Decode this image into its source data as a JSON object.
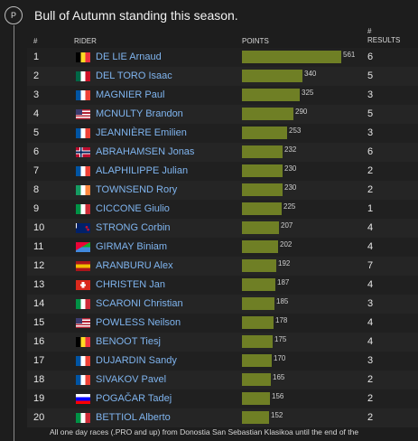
{
  "section_badge": "P",
  "heading": "Bull of Autumn standing this season.",
  "columns": {
    "num": "#",
    "rider": "RIDER",
    "points": "POINTS",
    "results_line1": "#",
    "results_line2": "RESULTS"
  },
  "max_points": 561,
  "riders": [
    {
      "rank": "1",
      "name": "DE LIE Arnaud",
      "points": 561,
      "points_label": "561",
      "results": "6",
      "flag": "be",
      "flag_colors": [
        "#000000",
        "#fdda24",
        "#ef3340"
      ]
    },
    {
      "rank": "2",
      "name": "DEL TORO Isaac",
      "points": 340,
      "points_label": "340",
      "results": "5",
      "flag": "mx",
      "flag_colors": [
        "#006847",
        "#ffffff",
        "#ce1126"
      ]
    },
    {
      "rank": "3",
      "name": "MAGNIER Paul",
      "points": 325,
      "points_label": "325",
      "results": "3",
      "flag": "fr",
      "flag_colors": [
        "#0055a4",
        "#ffffff",
        "#ef4135"
      ]
    },
    {
      "rank": "4",
      "name": "MCNULTY Brandon",
      "points": 290,
      "points_label": "290",
      "results": "5",
      "flag": "us",
      "flag_colors": [
        "#b22234",
        "#ffffff",
        "#3c3b6e"
      ]
    },
    {
      "rank": "5",
      "name": "JEANNIÈRE Emilien",
      "points": 253,
      "points_label": "253",
      "results": "3",
      "flag": "fr",
      "flag_colors": [
        "#0055a4",
        "#ffffff",
        "#ef4135"
      ]
    },
    {
      "rank": "6",
      "name": "ABRAHAMSEN Jonas",
      "points": 232,
      "points_label": "232",
      "results": "6",
      "flag": "no",
      "flag_colors": [
        "#ba0c2f",
        "#ffffff",
        "#00205b"
      ]
    },
    {
      "rank": "7",
      "name": "ALAPHILIPPE Julian",
      "points": 230,
      "points_label": "230",
      "results": "2",
      "flag": "fr",
      "flag_colors": [
        "#0055a4",
        "#ffffff",
        "#ef4135"
      ]
    },
    {
      "rank": "8",
      "name": "TOWNSEND Rory",
      "points": 230,
      "points_label": "230",
      "results": "2",
      "flag": "ie",
      "flag_colors": [
        "#169b62",
        "#ffffff",
        "#ff883e"
      ]
    },
    {
      "rank": "9",
      "name": "CICCONE Giulio",
      "points": 225,
      "points_label": "225",
      "results": "1",
      "flag": "it",
      "flag_colors": [
        "#009246",
        "#ffffff",
        "#ce2b37"
      ]
    },
    {
      "rank": "10",
      "name": "STRONG Corbin",
      "points": 207,
      "points_label": "207",
      "results": "4",
      "flag": "nz",
      "flag_colors": [
        "#012169",
        "#c8102e",
        "#ffffff"
      ]
    },
    {
      "rank": "11",
      "name": "GIRMAY Biniam",
      "points": 202,
      "points_label": "202",
      "results": "4",
      "flag": "er",
      "flag_colors": [
        "#12ad2b",
        "#4189dd",
        "#ea0437"
      ]
    },
    {
      "rank": "12",
      "name": "ARANBURU Alex",
      "points": 192,
      "points_label": "192",
      "results": "7",
      "flag": "es",
      "flag_colors": [
        "#aa151b",
        "#f1bf00",
        "#aa151b"
      ]
    },
    {
      "rank": "13",
      "name": "CHRISTEN Jan",
      "points": 187,
      "points_label": "187",
      "results": "4",
      "flag": "ch",
      "flag_colors": [
        "#da291c",
        "#ffffff",
        "#da291c"
      ]
    },
    {
      "rank": "14",
      "name": "SCARONI Christian",
      "points": 185,
      "points_label": "185",
      "results": "3",
      "flag": "it",
      "flag_colors": [
        "#009246",
        "#ffffff",
        "#ce2b37"
      ]
    },
    {
      "rank": "15",
      "name": "POWLESS Neilson",
      "points": 178,
      "points_label": "178",
      "results": "4",
      "flag": "us",
      "flag_colors": [
        "#b22234",
        "#ffffff",
        "#3c3b6e"
      ]
    },
    {
      "rank": "16",
      "name": "BENOOT Tiesj",
      "points": 175,
      "points_label": "175",
      "results": "4",
      "flag": "be",
      "flag_colors": [
        "#000000",
        "#fdda24",
        "#ef3340"
      ]
    },
    {
      "rank": "17",
      "name": "DUJARDIN Sandy",
      "points": 170,
      "points_label": "170",
      "results": "3",
      "flag": "fr",
      "flag_colors": [
        "#0055a4",
        "#ffffff",
        "#ef4135"
      ]
    },
    {
      "rank": "18",
      "name": "SIVAKOV Pavel",
      "points": 165,
      "points_label": "165",
      "results": "2",
      "flag": "fr",
      "flag_colors": [
        "#0055a4",
        "#ffffff",
        "#ef4135"
      ]
    },
    {
      "rank": "19",
      "name": "POGAČAR Tadej",
      "points": 156,
      "points_label": "156",
      "results": "2",
      "flag": "si",
      "flag_colors": [
        "#ffffff",
        "#0000ff",
        "#ff0000"
      ]
    },
    {
      "rank": "20",
      "name": "BETTIOL Alberto",
      "points": 152,
      "points_label": "152",
      "results": "2",
      "flag": "it",
      "flag_colors": [
        "#009246",
        "#ffffff",
        "#ce2b37"
      ]
    }
  ],
  "footnote": "All one day races (.PRO and up) from Donostia San Sebastian Klasikoa until the end of the"
}
